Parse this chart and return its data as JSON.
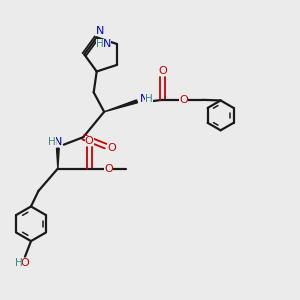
{
  "bg_color": "#ebebeb",
  "bond_color": "#1a1a1a",
  "nitrogen_color": "#0000cc",
  "oxygen_color": "#cc0000",
  "teal_color": "#3a8a7a",
  "figsize": [
    3.0,
    3.0
  ],
  "dpi": 100,
  "xlim": [
    0,
    10
  ],
  "ylim": [
    0,
    10
  ]
}
